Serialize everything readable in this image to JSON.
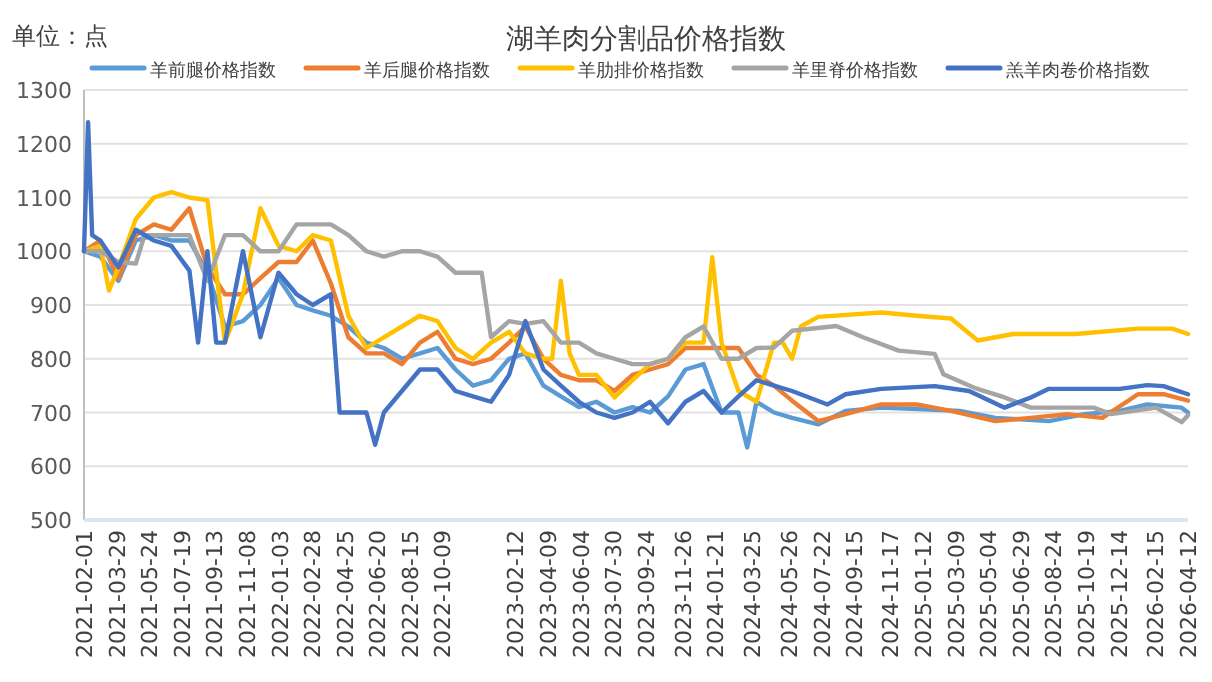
{
  "chart_data": {
    "type": "line",
    "title": "湖羊肉分割品价格指数",
    "ylabel": "单位：点",
    "legend": "top",
    "grid": "y",
    "ylim": [
      500,
      1300
    ],
    "yticks": [
      500,
      600,
      700,
      800,
      900,
      1000,
      1100,
      1200,
      1300
    ],
    "xlim": [
      "2021-02-01",
      "2026-04-12"
    ],
    "xticks": [
      "2021-02-01",
      "2021-03-29",
      "2021-05-24",
      "2021-07-19",
      "2021-09-13",
      "2021-11-08",
      "2022-01-03",
      "2022-02-28",
      "2022-04-25",
      "2022-06-20",
      "2022-08-15",
      "2022-10-09",
      "2023-02-12",
      "2023-04-09",
      "2023-06-04",
      "2023-07-30",
      "2023-09-24",
      "2023-11-26",
      "2024-01-21",
      "2024-03-25",
      "2024-05-26",
      "2024-07-22",
      "2024-09-15",
      "2024-11-17",
      "2025-01-12",
      "2025-03-09",
      "2025-05-04",
      "2025-06-29",
      "2025-08-24",
      "2025-10-19",
      "2025-12-14",
      "2026-02-15",
      "2026-04-12"
    ],
    "series": [
      {
        "name": "羊前腿价格指数",
        "color": "#5b9bd5",
        "x": [
          "2021-02-01",
          "2021-03-01",
          "2021-04-01",
          "2021-05-01",
          "2021-06-01",
          "2021-07-01",
          "2021-08-01",
          "2021-09-01",
          "2021-10-01",
          "2021-11-01",
          "2021-12-01",
          "2022-01-01",
          "2022-02-01",
          "2022-03-01",
          "2022-04-01",
          "2022-05-01",
          "2022-06-01",
          "2022-07-01",
          "2022-08-01",
          "2022-09-01",
          "2022-10-01",
          "2022-11-01",
          "2022-12-01",
          "2023-01-01",
          "2023-02-01",
          "2023-03-01",
          "2023-04-01",
          "2023-05-01",
          "2023-06-01",
          "2023-07-01",
          "2023-08-01",
          "2023-09-01",
          "2023-10-01",
          "2023-11-01",
          "2023-12-01",
          "2024-01-01",
          "2024-02-01",
          "2024-03-01",
          "2024-03-16",
          "2024-04-01",
          "2024-05-01",
          "2024-06-01",
          "2024-07-16",
          "2024-09-01",
          "2024-11-01",
          "2025-03-16",
          "2025-05-16",
          "2025-08-16",
          "2025-10-16",
          "2025-12-16",
          "2026-02-01",
          "2026-04-01",
          "2026-04-12"
        ],
        "values": [
          1000,
          990,
          945,
          1020,
          1030,
          1020,
          1020,
          960,
          860,
          870,
          900,
          950,
          900,
          890,
          880,
          860,
          830,
          820,
          800,
          810,
          820,
          780,
          750,
          760,
          800,
          810,
          750,
          730,
          710,
          720,
          700,
          710,
          700,
          730,
          780,
          790,
          700,
          700,
          635,
          720,
          700,
          690,
          678,
          703,
          709,
          703,
          690,
          684,
          697,
          703,
          715,
          709,
          700
        ]
      },
      {
        "name": "羊后腿价格指数",
        "color": "#ed7d31",
        "x": [
          "2021-02-01",
          "2021-03-01",
          "2021-04-01",
          "2021-05-01",
          "2021-06-01",
          "2021-07-01",
          "2021-08-01",
          "2021-09-01",
          "2021-10-01",
          "2021-11-01",
          "2021-12-01",
          "2022-01-01",
          "2022-02-01",
          "2022-03-01",
          "2022-04-01",
          "2022-05-01",
          "2022-06-01",
          "2022-07-01",
          "2022-08-01",
          "2022-09-01",
          "2022-10-01",
          "2022-11-01",
          "2022-12-01",
          "2023-01-01",
          "2023-02-01",
          "2023-03-01",
          "2023-04-01",
          "2023-05-01",
          "2023-06-01",
          "2023-07-01",
          "2023-08-01",
          "2023-09-01",
          "2023-10-01",
          "2023-11-01",
          "2023-12-01",
          "2024-01-01",
          "2024-02-01",
          "2024-03-01",
          "2024-04-01",
          "2024-05-01",
          "2024-06-01",
          "2024-07-16",
          "2024-09-01",
          "2024-11-01",
          "2025-01-01",
          "2025-03-01",
          "2025-05-16",
          "2025-07-16",
          "2025-09-16",
          "2025-11-16",
          "2026-01-16",
          "2026-03-01",
          "2026-04-12"
        ],
        "values": [
          1000,
          1020,
          950,
          1030,
          1050,
          1040,
          1080,
          970,
          920,
          920,
          950,
          980,
          980,
          1020,
          940,
          840,
          810,
          810,
          790,
          830,
          850,
          800,
          790,
          800,
          830,
          860,
          800,
          770,
          760,
          760,
          740,
          770,
          780,
          790,
          820,
          820,
          820,
          820,
          770,
          750,
          722,
          684,
          697,
          715,
          715,
          703,
          684,
          690,
          697,
          690,
          734,
          734,
          722
        ]
      },
      {
        "name": "羊肋排价格指数",
        "color": "#ffc000",
        "x": [
          "2021-02-01",
          "2021-03-01",
          "2021-03-16",
          "2021-04-01",
          "2021-05-01",
          "2021-06-01",
          "2021-07-01",
          "2021-08-01",
          "2021-09-01",
          "2021-10-01",
          "2021-11-01",
          "2021-12-01",
          "2022-01-01",
          "2022-02-01",
          "2022-03-01",
          "2022-04-01",
          "2022-05-01",
          "2022-06-01",
          "2022-07-01",
          "2022-08-01",
          "2022-09-01",
          "2022-10-01",
          "2022-11-01",
          "2022-12-01",
          "2023-01-01",
          "2023-02-01",
          "2023-03-01",
          "2023-04-01",
          "2023-04-16",
          "2023-05-01",
          "2023-05-16",
          "2023-06-01",
          "2023-07-01",
          "2023-08-01",
          "2023-09-01",
          "2023-10-01",
          "2023-11-01",
          "2023-12-01",
          "2024-01-01",
          "2024-01-16",
          "2024-02-01",
          "2024-03-01",
          "2024-04-01",
          "2024-05-01",
          "2024-05-16",
          "2024-06-01",
          "2024-06-16",
          "2024-07-16",
          "2024-11-01",
          "2025-01-01",
          "2025-03-01",
          "2025-04-16",
          "2025-06-16",
          "2025-10-01",
          "2026-01-16",
          "2026-03-16",
          "2026-04-12"
        ],
        "values": [
          1000,
          1010,
          927,
          970,
          1060,
          1100,
          1110,
          1100,
          1095,
          830,
          920,
          1080,
          1010,
          1000,
          1030,
          1020,
          880,
          820,
          840,
          860,
          880,
          870,
          820,
          800,
          830,
          850,
          810,
          800,
          800,
          945,
          810,
          770,
          770,
          728,
          760,
          790,
          800,
          830,
          830,
          989,
          830,
          740,
          720,
          830,
          830,
          800,
          860,
          878,
          886,
          880,
          875,
          834,
          846,
          846,
          856,
          856,
          846
        ]
      },
      {
        "name": "羊里脊价格指数",
        "color": "#a5a5a5",
        "x": [
          "2021-02-01",
          "2021-03-01",
          "2021-04-01",
          "2021-05-01",
          "2021-05-16",
          "2021-06-01",
          "2021-07-01",
          "2021-08-01",
          "2021-09-01",
          "2021-10-01",
          "2021-11-01",
          "2021-12-01",
          "2022-01-01",
          "2022-02-01",
          "2022-03-01",
          "2022-04-01",
          "2022-05-01",
          "2022-06-01",
          "2022-07-01",
          "2022-08-01",
          "2022-09-01",
          "2022-10-01",
          "2022-11-01",
          "2022-12-01",
          "2022-12-16",
          "2023-01-01",
          "2023-02-01",
          "2023-03-01",
          "2023-04-01",
          "2023-05-01",
          "2023-06-01",
          "2023-07-01",
          "2023-08-01",
          "2023-09-01",
          "2023-10-01",
          "2023-11-01",
          "2023-12-01",
          "2024-01-01",
          "2024-02-01",
          "2024-03-01",
          "2024-04-01",
          "2024-05-01",
          "2024-06-01",
          "2024-08-16",
          "2024-10-01",
          "2024-12-01",
          "2025-02-01",
          "2025-02-16",
          "2025-04-10",
          "2025-06-01",
          "2025-07-16",
          "2025-11-01",
          "2025-12-01",
          "2026-02-16",
          "2026-04-01",
          "2026-04-12"
        ],
        "values": [
          1000,
          1000,
          980,
          977,
          1030,
          1030,
          1030,
          1030,
          945,
          1030,
          1030,
          1000,
          1000,
          1050,
          1050,
          1050,
          1030,
          1000,
          990,
          1000,
          1000,
          990,
          960,
          960,
          960,
          840,
          870,
          865,
          870,
          830,
          830,
          810,
          800,
          790,
          790,
          800,
          840,
          860,
          800,
          800,
          820,
          821,
          852,
          861,
          840,
          815,
          809,
          771,
          746,
          728,
          709,
          709,
          697,
          709,
          682,
          695
        ]
      },
      {
        "name": "羔羊肉卷价格指数",
        "color": "#4472c4",
        "x": [
          "2021-02-01",
          "2021-02-08",
          "2021-02-15",
          "2021-03-01",
          "2021-04-01",
          "2021-05-01",
          "2021-06-01",
          "2021-07-01",
          "2021-08-01",
          "2021-08-16",
          "2021-09-01",
          "2021-09-16",
          "2021-10-01",
          "2021-11-01",
          "2021-12-01",
          "2022-01-01",
          "2022-02-01",
          "2022-03-01",
          "2022-04-01",
          "2022-04-16",
          "2022-05-01",
          "2022-06-01",
          "2022-06-16",
          "2022-07-01",
          "2022-08-01",
          "2022-09-01",
          "2022-10-01",
          "2022-11-01",
          "2022-12-01",
          "2023-01-01",
          "2023-02-01",
          "2023-03-01",
          "2023-04-01",
          "2023-05-01",
          "2023-06-01",
          "2023-07-01",
          "2023-08-01",
          "2023-09-01",
          "2023-10-01",
          "2023-11-01",
          "2023-12-01",
          "2024-01-01",
          "2024-02-01",
          "2024-03-01",
          "2024-04-01",
          "2024-05-01",
          "2024-06-01",
          "2024-08-01",
          "2024-09-01",
          "2024-11-01",
          "2025-02-01",
          "2025-04-01",
          "2025-06-01",
          "2025-07-16",
          "2025-08-16",
          "2025-12-16",
          "2026-02-01",
          "2026-03-01",
          "2026-04-12"
        ],
        "values": [
          1000,
          1240,
          1030,
          1020,
          970,
          1040,
          1020,
          1010,
          964,
          830,
          1000,
          830,
          830,
          1000,
          840,
          960,
          920,
          900,
          920,
          700,
          700,
          700,
          640,
          700,
          740,
          780,
          780,
          740,
          730,
          720,
          770,
          870,
          780,
          750,
          720,
          700,
          690,
          700,
          720,
          680,
          720,
          740,
          700,
          730,
          760,
          750,
          740,
          715,
          734,
          744,
          749,
          740,
          709,
          728,
          744,
          744,
          751,
          749,
          734
        ]
      }
    ]
  }
}
